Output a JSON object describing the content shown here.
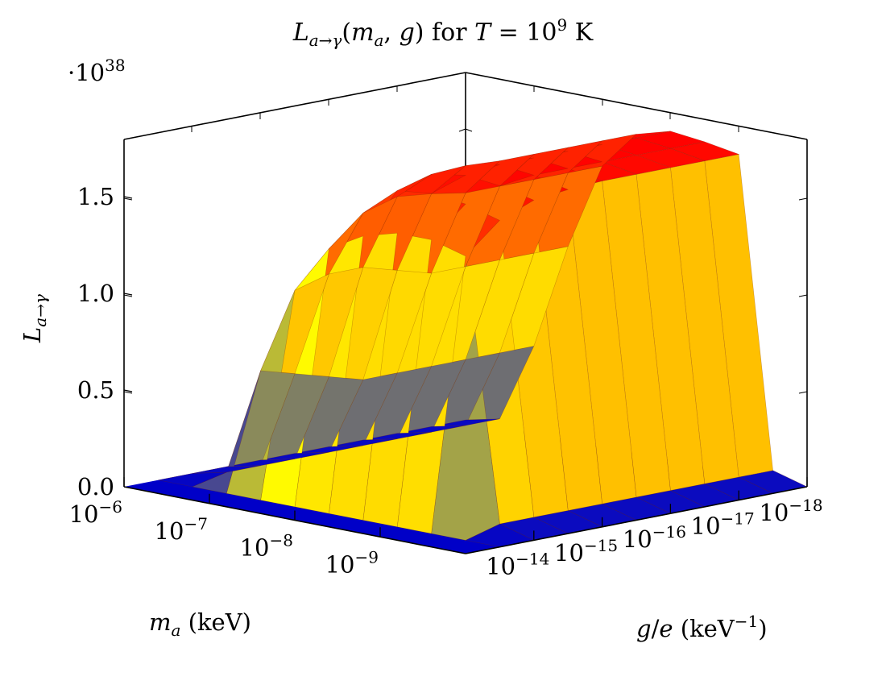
{
  "chart_data": {
    "type": "surface",
    "title": {
      "lhs_main": "L",
      "lhs_sub": "a→γ",
      "lhs_args_open": "(",
      "lhs_arg1": "m",
      "lhs_arg1_sub": "a",
      "lhs_comma": ", ",
      "lhs_arg2": "g",
      "lhs_args_close": ")",
      "mid_text": " for ",
      "temp_symbol": "T",
      "equals": " = 10",
      "temp_exponent": "9",
      "temp_unit": " K"
    },
    "z_multiplier": {
      "prefix": "·10",
      "exponent": "38"
    },
    "zlabel": {
      "main": "L",
      "sub": "a→γ"
    },
    "xlabel": {
      "symbol": "m",
      "sub": "a",
      "unit": " (keV)"
    },
    "ylabel": {
      "symbol": "g",
      "slash": "/",
      "denominator": "e",
      "unit_open": " (keV",
      "unit_exp": "−1",
      "unit_close": ")"
    },
    "z_ticks": [
      {
        "value": 0.0,
        "label": "0.0"
      },
      {
        "value": 0.5,
        "label": "0.5"
      },
      {
        "value": 1.0,
        "label": "1.0"
      },
      {
        "value": 1.5,
        "label": "1.5"
      }
    ],
    "x_ticks": [
      {
        "value": -6,
        "base": "10",
        "exp": "−6"
      },
      {
        "value": -7,
        "base": "10",
        "exp": "−7"
      },
      {
        "value": -8,
        "base": "10",
        "exp": "−8"
      },
      {
        "value": -9,
        "base": "10",
        "exp": "−9"
      }
    ],
    "y_ticks": [
      {
        "value": -14,
        "base": "10",
        "exp": "−14"
      },
      {
        "value": -15,
        "base": "10",
        "exp": "−15"
      },
      {
        "value": -16,
        "base": "10",
        "exp": "−16"
      },
      {
        "value": -17,
        "base": "10",
        "exp": "−17"
      },
      {
        "value": -18,
        "base": "10",
        "exp": "−18"
      }
    ],
    "x_range_log10": [
      -6,
      -10
    ],
    "y_range_log10": [
      -13,
      -18
    ],
    "z_range": [
      0,
      1.8
    ],
    "x_scale": "log",
    "y_scale": "log",
    "grid": false,
    "colormap": [
      "#0000c8",
      "#ffff00",
      "#ff8000",
      "#ff0000"
    ],
    "surface_approx": {
      "note_free": true,
      "ma_log10": [
        -6.0,
        -6.4,
        -6.8,
        -7.2,
        -7.6,
        -8.0,
        -8.4,
        -8.8,
        -9.2,
        -9.6,
        -10.0
      ],
      "g_log10": [
        -13.0,
        -13.5,
        -14.0,
        -14.5,
        -15.0,
        -15.5,
        -16.0,
        -16.5,
        -17.0,
        -17.5,
        -18.0
      ],
      "z": [
        [
          0,
          0,
          0,
          0,
          0,
          0,
          0,
          0,
          0,
          0,
          0
        ],
        [
          0,
          0,
          0,
          0,
          0,
          0,
          0,
          0,
          0,
          0,
          0
        ],
        [
          0,
          0.04,
          0.6,
          1.05,
          1.3,
          1.4,
          1.45,
          1.45,
          1.4,
          0.05,
          0
        ],
        [
          0,
          0.04,
          0.55,
          1.1,
          1.45,
          1.6,
          1.62,
          1.6,
          1.55,
          0.05,
          0
        ],
        [
          0,
          0.04,
          0.5,
          1.1,
          1.5,
          1.65,
          1.68,
          1.66,
          1.62,
          0.05,
          0
        ],
        [
          0,
          0.04,
          0.45,
          1.05,
          1.48,
          1.66,
          1.7,
          1.68,
          1.64,
          0.05,
          0
        ],
        [
          0,
          0.04,
          0.45,
          1.0,
          1.45,
          1.65,
          1.7,
          1.68,
          1.65,
          0.05,
          0
        ],
        [
          0,
          0.04,
          0.45,
          1.0,
          1.45,
          1.65,
          1.7,
          1.68,
          1.65,
          0.05,
          0
        ],
        [
          0,
          0.04,
          0.45,
          1.0,
          1.45,
          1.65,
          1.7,
          1.68,
          1.65,
          0.05,
          0
        ],
        [
          0,
          0.04,
          0.45,
          1.0,
          1.45,
          1.65,
          1.7,
          1.68,
          1.65,
          0.05,
          0
        ],
        [
          0,
          0.04,
          0.45,
          1.0,
          1.45,
          1.65,
          1.7,
          1.68,
          1.65,
          0.05,
          0
        ]
      ]
    }
  }
}
